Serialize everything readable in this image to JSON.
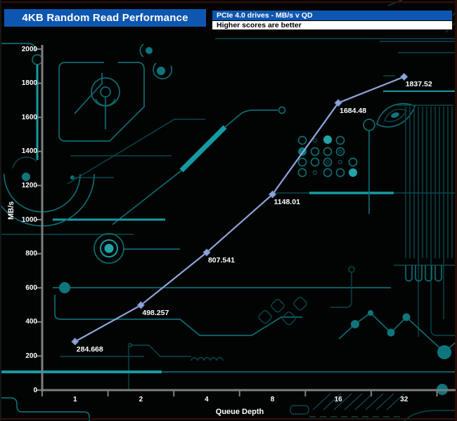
{
  "header": {
    "title": "4KB Random Read Performance",
    "box_line1": "PCIe 4.0 drives - MB/s v QD",
    "box_line2": "Higher scores are better"
  },
  "colors": {
    "header_blue": "#0e57b0",
    "line": "#8fa6db",
    "marker": "#8da3d9",
    "axis_gray": "#7e7e7e",
    "trace_teal": "#0d6b71",
    "trace_bright": "#169aa1",
    "background": "#020404",
    "text": "#ffffff"
  },
  "chart_data": {
    "type": "line",
    "title": "4KB Random Read Performance",
    "xlabel": "Queue Depth",
    "ylabel": "MB/s",
    "x": [
      1,
      2,
      4,
      8,
      16,
      32
    ],
    "xticks": [
      "1",
      "2",
      "4",
      "8",
      "16",
      "32"
    ],
    "values": [
      284.668,
      498.257,
      807.541,
      1148.01,
      1684.48,
      1837.52
    ],
    "point_labels": [
      "284.668",
      "498.257",
      "807.541",
      "1148.01",
      "1684.48",
      "1837.52"
    ],
    "series_name": "PCIe 4.0 drive",
    "ylim": [
      0,
      2000
    ],
    "ytick_step": 200,
    "yticks": [
      "0",
      "200",
      "400",
      "600",
      "800",
      "1000",
      "1200",
      "1400",
      "1600",
      "1800",
      "2000"
    ],
    "grid": false,
    "legend": "none"
  }
}
